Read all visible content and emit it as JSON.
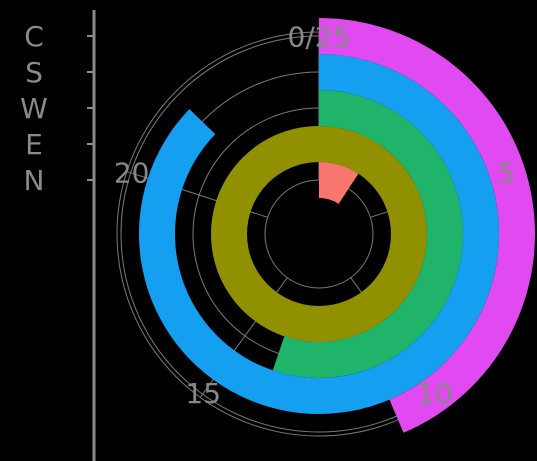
{
  "chart_data": {
    "type": "radial-bar",
    "theme": {
      "background": "#000000",
      "grid_color": "#7a7a7a",
      "text_color": "#888888"
    },
    "angle_axis": {
      "range": [
        0,
        25
      ],
      "ticks": [
        "0/25",
        "5",
        "10",
        "15",
        "20"
      ],
      "tick_values": [
        0,
        5,
        10,
        15,
        20
      ]
    },
    "radial_axis": {
      "categories": [
        "N",
        "E",
        "W",
        "S",
        "C"
      ],
      "grid_circles": 5
    },
    "series": [
      {
        "category": "N",
        "value": 2.3,
        "color": "#f8766d"
      },
      {
        "category": "E",
        "value": 25,
        "color": "#909000"
      },
      {
        "category": "W",
        "value": 13.8,
        "color": "#1fb46a"
      },
      {
        "category": "S",
        "value": 21.8,
        "color": "#149ff0"
      },
      {
        "category": "C",
        "value": 10.9,
        "color": "#e04af0"
      }
    ]
  }
}
